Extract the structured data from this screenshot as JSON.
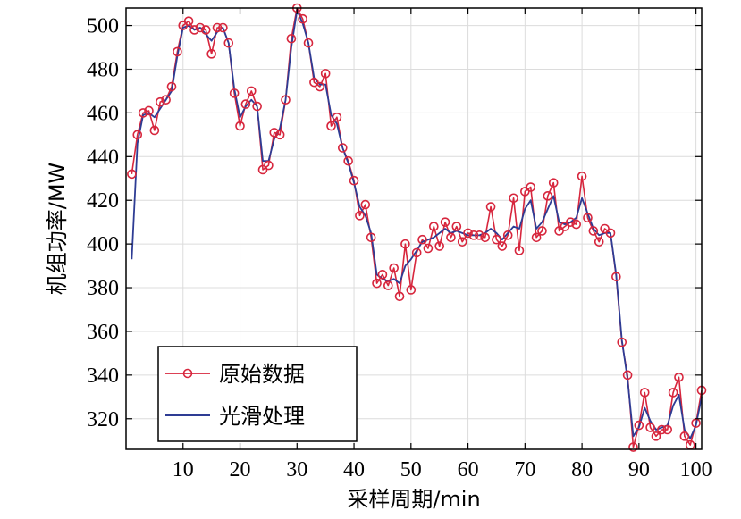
{
  "chart_data": {
    "type": "line",
    "xlabel": "采样周期/min",
    "ylabel": "机组功率/MW",
    "xlim": [
      0,
      101
    ],
    "ylim": [
      306,
      508
    ],
    "xticks": [
      10,
      20,
      30,
      40,
      50,
      60,
      70,
      80,
      90,
      100
    ],
    "yticks": [
      320,
      340,
      360,
      380,
      400,
      420,
      440,
      460,
      480,
      500
    ],
    "grid": true,
    "legend_position": "bottom-left",
    "x": [
      1,
      2,
      3,
      4,
      5,
      6,
      7,
      8,
      9,
      10,
      11,
      12,
      13,
      14,
      15,
      16,
      17,
      18,
      19,
      20,
      21,
      22,
      23,
      24,
      25,
      26,
      27,
      28,
      29,
      30,
      31,
      32,
      33,
      34,
      35,
      36,
      37,
      38,
      39,
      40,
      41,
      42,
      43,
      44,
      45,
      46,
      47,
      48,
      49,
      50,
      51,
      52,
      53,
      54,
      55,
      56,
      57,
      58,
      59,
      60,
      61,
      62,
      63,
      64,
      65,
      66,
      67,
      68,
      69,
      70,
      71,
      72,
      73,
      74,
      75,
      76,
      77,
      78,
      79,
      80,
      81,
      82,
      83,
      84,
      85,
      86,
      87,
      88,
      89,
      90,
      91,
      92,
      93,
      94,
      95,
      96,
      97,
      98,
      99,
      100,
      101
    ],
    "series": [
      {
        "name": "原始数据",
        "color": "#d7263d",
        "marker": "circle",
        "values": [
          432,
          450,
          460,
          461,
          452,
          465,
          466,
          472,
          488,
          500,
          502,
          498,
          499,
          498,
          487,
          499,
          499,
          492,
          469,
          454,
          464,
          470,
          463,
          434,
          436,
          451,
          450,
          466,
          494,
          508,
          503,
          492,
          474,
          472,
          478,
          454,
          458,
          444,
          438,
          429,
          413,
          418,
          403,
          382,
          386,
          381,
          389,
          376,
          400,
          379,
          396,
          402,
          398,
          408,
          399,
          410,
          403,
          408,
          401,
          405,
          404,
          404,
          403,
          417,
          402,
          399,
          404,
          421,
          397,
          424,
          426,
          403,
          406,
          422,
          428,
          406,
          408,
          410,
          409,
          431,
          412,
          406,
          401,
          407,
          405,
          385,
          355,
          340,
          307,
          317,
          332,
          316,
          312,
          315,
          315,
          332,
          339,
          312,
          308,
          318,
          333
        ]
      },
      {
        "name": "光滑处理",
        "color": "#2e3c94",
        "marker": "none",
        "values": [
          393,
          446,
          459,
          460,
          458,
          462,
          466,
          470,
          486,
          499,
          500,
          498,
          499,
          496,
          493,
          497,
          499,
          492,
          471,
          458,
          463,
          466,
          463,
          438,
          438,
          448,
          453,
          466,
          490,
          507,
          501,
          492,
          476,
          473,
          473,
          459,
          455,
          444,
          437,
          428,
          417,
          413,
          405,
          386,
          384,
          383,
          384,
          382,
          390,
          393,
          397,
          401,
          402,
          403,
          405,
          407,
          405,
          406,
          405,
          404,
          404,
          404,
          405,
          407,
          405,
          402,
          405,
          408,
          407,
          416,
          420,
          407,
          410,
          416,
          422,
          410,
          409,
          410,
          412,
          421,
          414,
          407,
          404,
          405,
          405,
          386,
          356,
          338,
          312,
          316,
          325,
          319,
          315,
          316,
          317,
          326,
          331,
          315,
          311,
          317,
          330
        ]
      }
    ]
  }
}
